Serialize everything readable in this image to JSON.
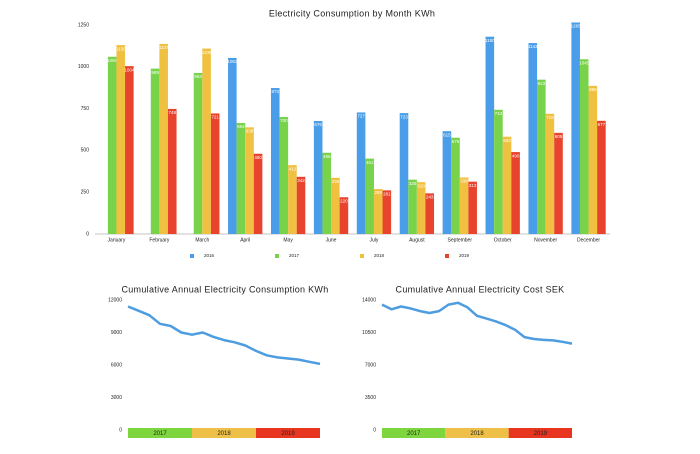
{
  "chart_data": [
    {
      "type": "bar",
      "title": "Electricity Consumption by Month KWh",
      "categories": [
        "January",
        "February",
        "March",
        "April",
        "May",
        "June",
        "July",
        "August",
        "September",
        "October",
        "November",
        "December"
      ],
      "series": [
        {
          "name": "2016",
          "color": "#4a9de8",
          "values": [
            null,
            null,
            null,
            1053,
            873,
            676,
            727,
            723,
            615,
            1180,
            1142,
            1265
          ]
        },
        {
          "name": "2017",
          "color": "#78d34a",
          "values": [
            1060,
            989,
            963,
            664,
            700,
            486,
            451,
            325,
            576,
            743,
            923,
            1045
          ]
        },
        {
          "name": "2018",
          "color": "#f0c040",
          "values": [
            1130,
            1137,
            1109,
            638,
            412,
            336,
            269,
            310,
            338,
            582,
            719,
            886
          ]
        },
        {
          "name": "2019",
          "color": "#e8432d",
          "values": [
            1004,
            748,
            721,
            480,
            342,
            220,
            261,
            243,
            313,
            490,
            605,
            677
          ]
        }
      ],
      "ylim": [
        0,
        1250
      ],
      "yticks": [
        0,
        250,
        500,
        750,
        1000,
        1250
      ],
      "grid": false,
      "legend": "bottom"
    },
    {
      "type": "line",
      "title": "Cumulative Annual Electricity Consumption KWh",
      "color": "#4d9de0",
      "values": [
        11400,
        11000,
        10600,
        9800,
        9600,
        9000,
        8800,
        9000,
        8600,
        8300,
        8100,
        7800,
        7300,
        6900,
        6700,
        6600,
        6500,
        6300,
        6100
      ],
      "ylim": [
        0,
        12000
      ],
      "yticks": [
        0,
        3000,
        6000,
        9000,
        12000
      ],
      "grid": false,
      "bands": [
        {
          "name": "2017",
          "color": "#7ed63e"
        },
        {
          "name": "2018",
          "color": "#eec048"
        },
        {
          "name": "2019",
          "color": "#e8351f"
        }
      ]
    },
    {
      "type": "line",
      "title": "Cumulative Annual Electricity Cost SEK",
      "color": "#4d9de0",
      "values": [
        13500,
        13000,
        13300,
        13100,
        12800,
        12600,
        12800,
        13500,
        13700,
        13200,
        12300,
        12000,
        11700,
        11300,
        10800,
        10000,
        9800,
        9700,
        9650,
        9500,
        9300
      ],
      "ylim": [
        0,
        14000
      ],
      "yticks": [
        0,
        3500,
        7000,
        10500,
        14000
      ],
      "grid": false,
      "bands": [
        {
          "name": "2017",
          "color": "#7ed63e"
        },
        {
          "name": "2018",
          "color": "#eec048"
        },
        {
          "name": "2019",
          "color": "#e8351f"
        }
      ]
    }
  ]
}
